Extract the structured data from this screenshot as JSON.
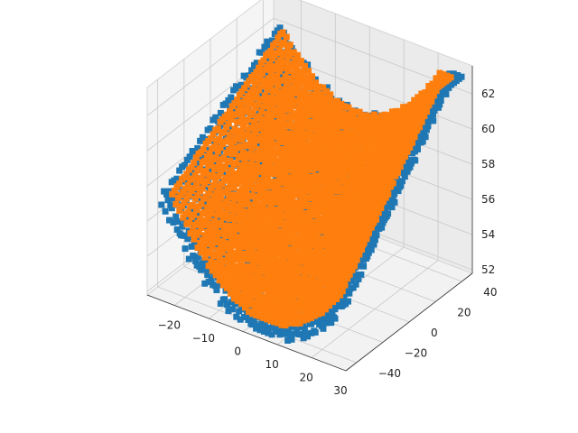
{
  "chart_data": {
    "type": "scatter",
    "projection": "3d",
    "title": "",
    "xlabel": "",
    "ylabel": "",
    "zlabel": "",
    "grid": true,
    "legend": "none",
    "xlim": [
      -28,
      30
    ],
    "ylim": [
      -48,
      48
    ],
    "zlim": [
      51.8,
      63.6
    ],
    "x_ticks": [
      -20,
      -10,
      0,
      10,
      20,
      30
    ],
    "y_ticks": [
      -40,
      -20,
      0,
      20,
      40
    ],
    "z_ticks": [
      52,
      54,
      56,
      58,
      60,
      62
    ],
    "series": [
      {
        "color": "#1f77b4",
        "shape": "saddle-surface-points",
        "x_range": [
          -25,
          28
        ],
        "y_range": [
          -45,
          45
        ],
        "z_range": [
          52,
          63
        ]
      },
      {
        "color": "#ff7f0e",
        "shape": "saddle-surface-points",
        "x_range": [
          -23,
          26
        ],
        "y_range": [
          -42,
          42
        ],
        "z_range": [
          52.5,
          63
        ]
      }
    ]
  }
}
